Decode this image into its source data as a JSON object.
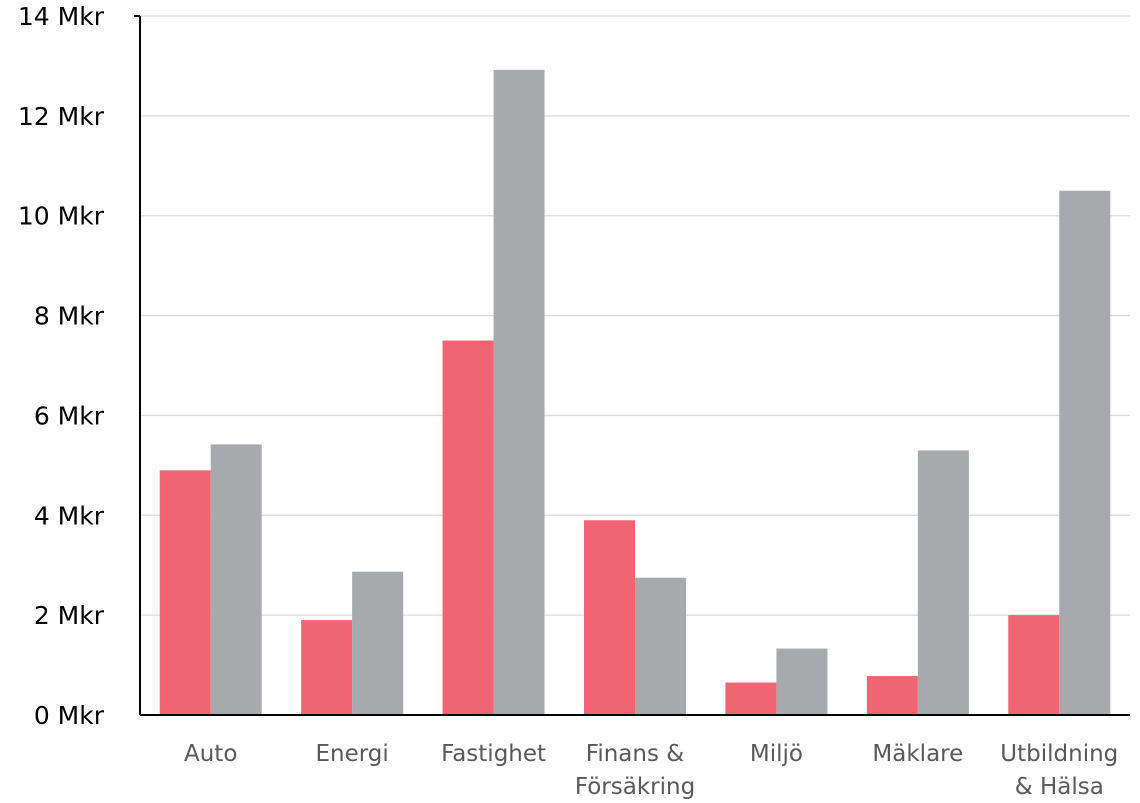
{
  "chart_data": {
    "type": "bar",
    "categories": [
      [
        "Auto"
      ],
      [
        "Energi"
      ],
      [
        "Fastighet"
      ],
      [
        "Finans &",
        "Försäkring"
      ],
      [
        "Miljö"
      ],
      [
        "Mäklare"
      ],
      [
        "Utbildning",
        "& Hälsa"
      ]
    ],
    "series": [
      {
        "color": "#f06474",
        "values": [
          4.9,
          1.9,
          7.5,
          3.9,
          0.65,
          0.78,
          2.0
        ]
      },
      {
        "color": "#a8a9ad",
        "values": [
          5.42,
          2.87,
          12.92,
          2.75,
          1.33,
          5.3,
          10.5
        ]
      }
    ],
    "yticks": [
      "0 Mkr",
      "2 Mkr",
      "4 Mkr",
      "6 Mkr",
      "8 Mkr",
      "10 Mkr",
      "12 Mkr",
      "14 Mkr"
    ],
    "ylim": [
      0,
      14
    ],
    "grid": true,
    "legend": "none",
    "title": "",
    "xlabel": "",
    "ylabel": ""
  }
}
